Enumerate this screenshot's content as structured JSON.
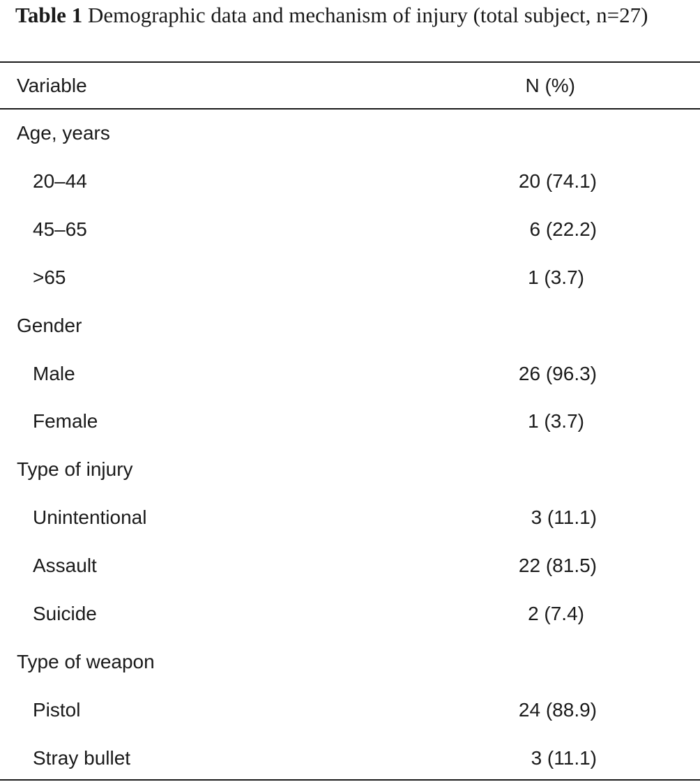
{
  "caption": {
    "label": "Table 1",
    "text": "Demographic data and mechanism of injury (total subject, n=27)"
  },
  "table": {
    "header": {
      "variable": "Variable",
      "value": "N (%)"
    },
    "rows": [
      {
        "variable": "Age, years",
        "value": "",
        "level": "group"
      },
      {
        "variable": "20–44",
        "value": "20 (74.1)",
        "level": "sub"
      },
      {
        "variable": "45–65",
        "value": "6 (22.2)",
        "level": "sub"
      },
      {
        "variable": ">65",
        "value": "1 (3.7)",
        "level": "sub"
      },
      {
        "variable": "Gender",
        "value": "",
        "level": "group"
      },
      {
        "variable": "Male",
        "value": "26 (96.3)",
        "level": "sub"
      },
      {
        "variable": "Female",
        "value": "1 (3.7)",
        "level": "sub"
      },
      {
        "variable": "Type of injury",
        "value": "",
        "level": "group"
      },
      {
        "variable": "Unintentional",
        "value": "3 (11.1)",
        "level": "sub"
      },
      {
        "variable": "Assault",
        "value": "22 (81.5)",
        "level": "sub"
      },
      {
        "variable": "Suicide",
        "value": "2 (7.4)",
        "level": "sub"
      },
      {
        "variable": "Type of weapon",
        "value": "",
        "level": "group"
      },
      {
        "variable": "Pistol",
        "value": "24 (88.9)",
        "level": "sub"
      },
      {
        "variable": "Stray bullet",
        "value": "3 (11.1)",
        "level": "sub"
      }
    ]
  }
}
